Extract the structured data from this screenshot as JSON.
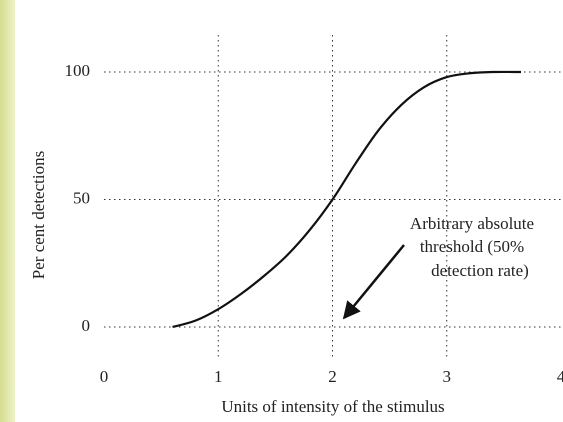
{
  "chart_data": {
    "type": "line",
    "xlabel": "Units of intensity of the stimulus",
    "ylabel": "Per cent detections",
    "x": [
      0.6,
      0.8,
      1.0,
      1.2,
      1.4,
      1.6,
      1.8,
      2.0,
      2.2,
      2.4,
      2.6,
      2.8,
      3.0,
      3.2,
      3.4,
      3.65
    ],
    "values": [
      0,
      2.5,
      7,
      13,
      20,
      28,
      38,
      50,
      64,
      77,
      87,
      94,
      98,
      99.5,
      100,
      100
    ],
    "color": "#111111",
    "xlim": [
      0,
      4
    ],
    "xticks": [
      0,
      1,
      2,
      3,
      4
    ],
    "ylim": [
      0,
      100
    ],
    "yticks": [
      0,
      50,
      100
    ],
    "grid": true,
    "annotation": [
      "Arbitrary absolute",
      "threshold (50%",
      "detection rate)"
    ]
  }
}
